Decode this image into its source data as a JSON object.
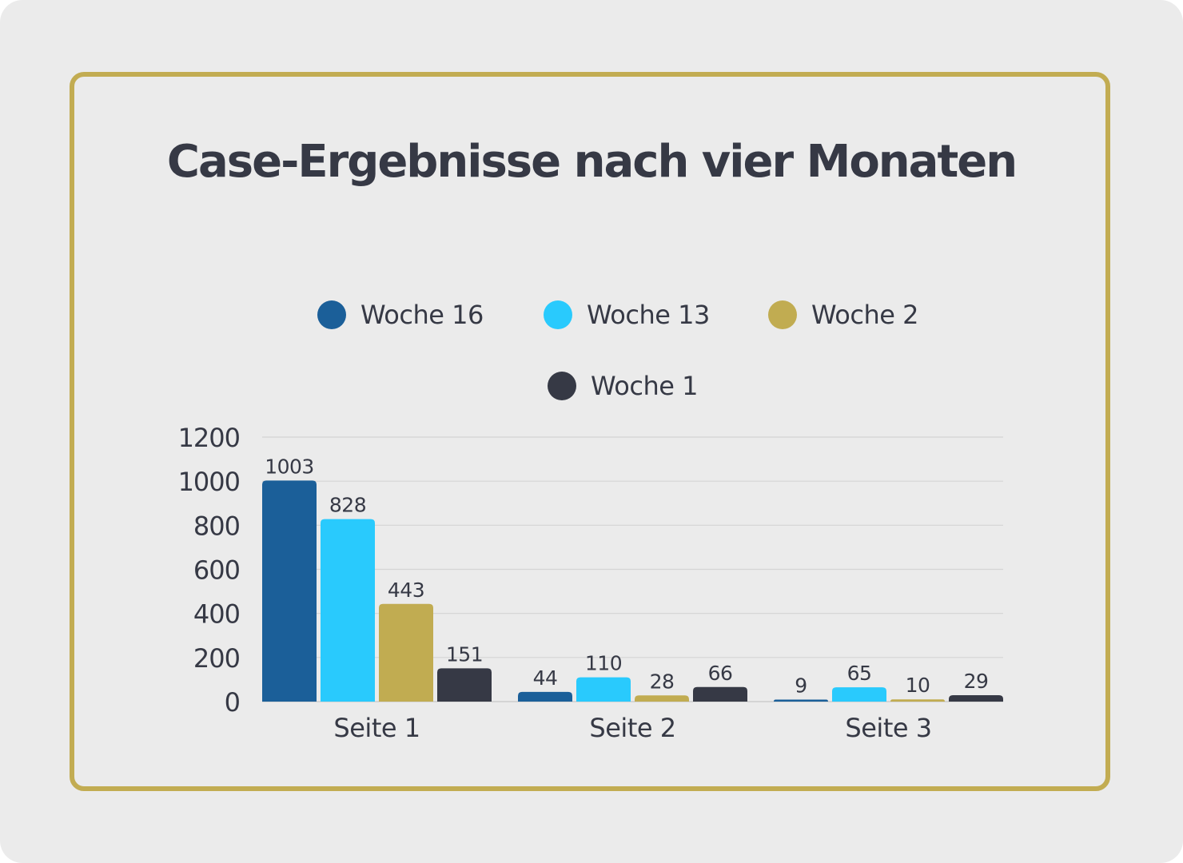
{
  "colors": {
    "background": "#ebebeb",
    "frame": "#c2ac52",
    "text": "#363945",
    "grid": "#d4d4d4"
  },
  "chart_data": {
    "type": "bar",
    "title": "Case-Ergebnisse nach vier Monaten",
    "xlabel": "",
    "ylabel": "",
    "categories": [
      "Seite 1",
      "Seite 2",
      "Seite 3"
    ],
    "series": [
      {
        "name": "Woche 16",
        "color": "#1b5f99",
        "values": [
          1003,
          44,
          9
        ]
      },
      {
        "name": "Woche 13",
        "color": "#29cafd",
        "values": [
          828,
          110,
          65
        ]
      },
      {
        "name": "Woche 2",
        "color": "#c1ac51",
        "values": [
          443,
          28,
          10
        ]
      },
      {
        "name": "Woche 1",
        "color": "#363945",
        "values": [
          151,
          66,
          29
        ]
      }
    ],
    "ylim": [
      0,
      1200
    ],
    "yticks": [
      0,
      200,
      400,
      600,
      800,
      1000,
      1200
    ],
    "ytick_labels": [
      "0",
      "200",
      "400",
      "600",
      "800",
      "1000",
      "1200"
    ],
    "grid": true,
    "legend_position": "top-center",
    "data_labels": true
  }
}
